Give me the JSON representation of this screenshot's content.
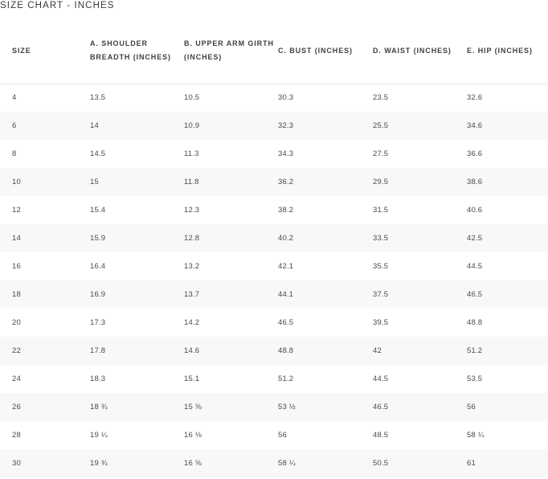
{
  "title": "SIZE CHART - INCHES",
  "headers": [
    "SIZE",
    "A. SHOULDER BREADTH (INCHES)",
    "B. UPPER ARM GIRTH (INCHES)",
    "C. BUST (INCHES)",
    "D. WAIST (INCHES)",
    "E. HIP (INCHES)"
  ],
  "rows": [
    [
      "4",
      "13.5",
      "10.5",
      "30.3",
      "23.5",
      "32.6"
    ],
    [
      "6",
      "14",
      "10.9",
      "32.3",
      "25.5",
      "34.6"
    ],
    [
      "8",
      "14.5",
      "11.3",
      "34.3",
      "27.5",
      "36.6"
    ],
    [
      "10",
      "15",
      "11.8",
      "36.2",
      "29.5",
      "38.6"
    ],
    [
      "12",
      "15.4",
      "12.3",
      "38.2",
      "31.5",
      "40.6"
    ],
    [
      "14",
      "15.9",
      "12.8",
      "40.2",
      "33.5",
      "42.5"
    ],
    [
      "16",
      "16.4",
      "13.2",
      "42.1",
      "35.5",
      "44.5"
    ],
    [
      "18",
      "16.9",
      "13.7",
      "44.1",
      "37.5",
      "46.5"
    ],
    [
      "20",
      "17.3",
      "14.2",
      "46.5",
      "39.5",
      "48.8"
    ],
    [
      "22",
      "17.8",
      "14.6",
      "48.8",
      "42",
      "51.2"
    ],
    [
      "24",
      "18.3",
      "15.1",
      "51.2",
      "44.5",
      "53.5"
    ],
    [
      "26",
      "18 ¾",
      "15 ⅝",
      "53 ½",
      "46.5",
      "56"
    ],
    [
      "28",
      "19 ¼",
      "16 ⅛",
      "56",
      "48.5",
      "58 ¼"
    ],
    [
      "30",
      "19 ¾",
      "16 ⅝",
      "58 ¼",
      "50.5",
      "61"
    ]
  ]
}
